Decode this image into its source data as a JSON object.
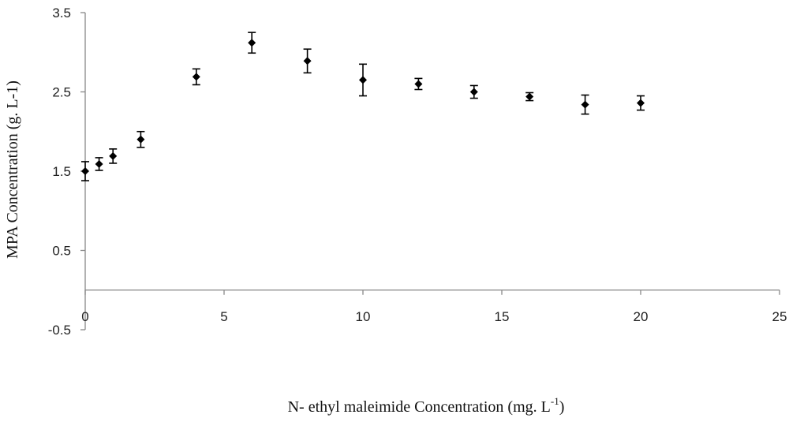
{
  "chart_data": {
    "type": "scatter",
    "xlabel": "N- ethyl maleimide Concentration (mg. L",
    "xlabel_sup": "-1",
    "xlabel_end": ")",
    "ylabel": "MPA Concentration (g. L-1)",
    "xlim": [
      0,
      25
    ],
    "ylim": [
      -0.5,
      3.5
    ],
    "x_ticks": [
      0,
      5,
      10,
      15,
      20,
      25
    ],
    "y_ticks": [
      -0.5,
      0.5,
      1.5,
      2.5,
      3.5
    ],
    "x_tick_labels": [
      "0",
      "5",
      "10",
      "15",
      "20",
      "25"
    ],
    "y_tick_labels": [
      "-0.5",
      "0.5",
      "1.5",
      "2.5",
      "3.5"
    ],
    "grid": false,
    "marker_color": "#000000",
    "points": [
      {
        "x": 0,
        "y": 1.5,
        "err": 0.12
      },
      {
        "x": 0.5,
        "y": 1.59,
        "err": 0.08
      },
      {
        "x": 1,
        "y": 1.69,
        "err": 0.09
      },
      {
        "x": 2,
        "y": 1.9,
        "err": 0.1
      },
      {
        "x": 4,
        "y": 2.69,
        "err": 0.1
      },
      {
        "x": 6,
        "y": 3.12,
        "err": 0.13
      },
      {
        "x": 8,
        "y": 2.89,
        "err": 0.15
      },
      {
        "x": 10,
        "y": 2.65,
        "err": 0.2
      },
      {
        "x": 12,
        "y": 2.6,
        "err": 0.07
      },
      {
        "x": 14,
        "y": 2.5,
        "err": 0.08
      },
      {
        "x": 16,
        "y": 2.44,
        "err": 0.05
      },
      {
        "x": 18,
        "y": 2.34,
        "err": 0.12
      },
      {
        "x": 20,
        "y": 2.36,
        "err": 0.09
      }
    ]
  }
}
